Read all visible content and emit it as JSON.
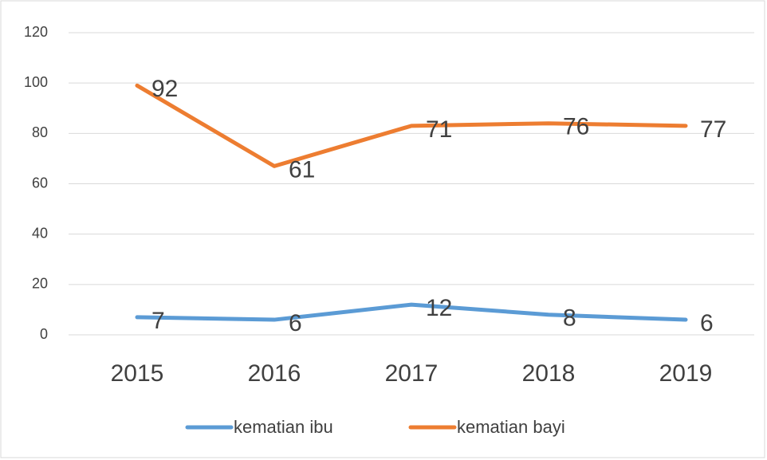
{
  "chart_data": {
    "type": "line",
    "categories": [
      "2015",
      "2016",
      "2017",
      "2018",
      "2019"
    ],
    "series": [
      {
        "name": "kematian ibu",
        "color": "#5b9bd5",
        "values": [
          7,
          6,
          12,
          8,
          6
        ]
      },
      {
        "name": "kematian bayi",
        "color": "#ed7d31",
        "values": [
          99,
          67,
          83,
          84,
          83
        ],
        "annotations": [
          "92",
          "61",
          "71",
          "76",
          "77"
        ]
      }
    ],
    "ylim": [
      0,
      120
    ],
    "yticks": [
      0,
      20,
      40,
      60,
      80,
      100,
      120
    ],
    "grid": true,
    "legend": "bottom"
  }
}
